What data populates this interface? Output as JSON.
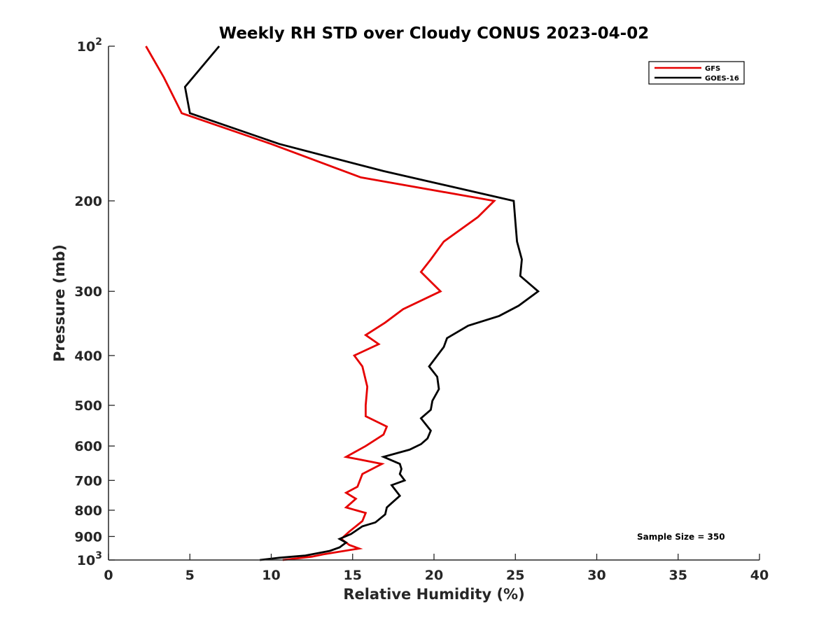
{
  "chart_data": {
    "type": "line",
    "title": "Weekly RH STD over Cloudy CONUS 2023-04-02",
    "xlabel": "Relative Humidity (%)",
    "ylabel": "Pressure (mb)",
    "xlim": [
      0,
      40
    ],
    "ylim": [
      100,
      1000
    ],
    "yscale": "log",
    "y_reversed": true,
    "grid": false,
    "legend_position": "top-right",
    "xticks": [
      {
        "value": 0,
        "label": "0"
      },
      {
        "value": 5,
        "label": "5"
      },
      {
        "value": 10,
        "label": "10"
      },
      {
        "value": 15,
        "label": "15"
      },
      {
        "value": 20,
        "label": "20"
      },
      {
        "value": 25,
        "label": "25"
      },
      {
        "value": 30,
        "label": "30"
      },
      {
        "value": 35,
        "label": "35"
      },
      {
        "value": 40,
        "label": "40"
      }
    ],
    "yticks": [
      {
        "value": 100,
        "base": "10",
        "exp": "2"
      },
      {
        "value": 200,
        "label": "200"
      },
      {
        "value": 300,
        "label": "300"
      },
      {
        "value": 400,
        "label": "400"
      },
      {
        "value": 500,
        "label": "500"
      },
      {
        "value": 600,
        "label": "600"
      },
      {
        "value": 700,
        "label": "700"
      },
      {
        "value": 800,
        "label": "800"
      },
      {
        "value": 900,
        "label": "900"
      },
      {
        "value": 1000,
        "base": "10",
        "exp": "3"
      }
    ],
    "series": [
      {
        "name": "GFS",
        "color": "#e60000",
        "points": [
          [
            2.3,
            100
          ],
          [
            3.4,
            115
          ],
          [
            4.5,
            135
          ],
          [
            10,
            155
          ],
          [
            15.5,
            180
          ],
          [
            23.7,
            200
          ],
          [
            22.7,
            215
          ],
          [
            20.6,
            240
          ],
          [
            19.8,
            260
          ],
          [
            19.2,
            275
          ],
          [
            20.4,
            300
          ],
          [
            18.1,
            325
          ],
          [
            17,
            345
          ],
          [
            15.8,
            365
          ],
          [
            16.6,
            380
          ],
          [
            15.1,
            400
          ],
          [
            15.6,
            420
          ],
          [
            15.9,
            460
          ],
          [
            15.8,
            500
          ],
          [
            15.8,
            525
          ],
          [
            17.1,
            550
          ],
          [
            16.9,
            570
          ],
          [
            15.8,
            600
          ],
          [
            14.6,
            630
          ],
          [
            16.8,
            650
          ],
          [
            15.6,
            680
          ],
          [
            15.3,
            720
          ],
          [
            14.6,
            740
          ],
          [
            15.2,
            760
          ],
          [
            14.6,
            790
          ],
          [
            15.8,
            810
          ],
          [
            15.6,
            840
          ],
          [
            14.8,
            880
          ],
          [
            14.3,
            910
          ],
          [
            14.8,
            935
          ],
          [
            15.4,
            950
          ],
          [
            13.2,
            975
          ],
          [
            12.5,
            985
          ],
          [
            10.7,
            1000
          ]
        ]
      },
      {
        "name": "GOES-16",
        "color": "#000000",
        "points": [
          [
            6.8,
            100
          ],
          [
            4.7,
            120
          ],
          [
            5,
            135
          ],
          [
            10.5,
            155
          ],
          [
            16.9,
            175
          ],
          [
            24.9,
            200
          ],
          [
            25,
            220
          ],
          [
            25.1,
            240
          ],
          [
            25.4,
            260
          ],
          [
            25.3,
            280
          ],
          [
            26.4,
            300
          ],
          [
            25.2,
            320
          ],
          [
            24,
            335
          ],
          [
            22.1,
            350
          ],
          [
            20.8,
            370
          ],
          [
            20.6,
            385
          ],
          [
            19.7,
            420
          ],
          [
            20.2,
            440
          ],
          [
            20.3,
            465
          ],
          [
            19.9,
            490
          ],
          [
            19.8,
            510
          ],
          [
            19.2,
            530
          ],
          [
            19.8,
            560
          ],
          [
            19.6,
            580
          ],
          [
            19.2,
            595
          ],
          [
            18.5,
            610
          ],
          [
            16.9,
            630
          ],
          [
            17.9,
            650
          ],
          [
            18,
            665
          ],
          [
            17.9,
            680
          ],
          [
            18.2,
            700
          ],
          [
            17.4,
            715
          ],
          [
            17.9,
            750
          ],
          [
            17.4,
            775
          ],
          [
            17.1,
            790
          ],
          [
            17,
            815
          ],
          [
            16.4,
            845
          ],
          [
            15.6,
            860
          ],
          [
            14.9,
            890
          ],
          [
            14.2,
            910
          ],
          [
            14.6,
            925
          ],
          [
            14.2,
            945
          ],
          [
            13.6,
            960
          ],
          [
            12.1,
            980
          ],
          [
            10.5,
            990
          ],
          [
            9.3,
            1000
          ]
        ]
      }
    ],
    "annotations": {
      "sample_size": "Sample Size = 350"
    }
  }
}
